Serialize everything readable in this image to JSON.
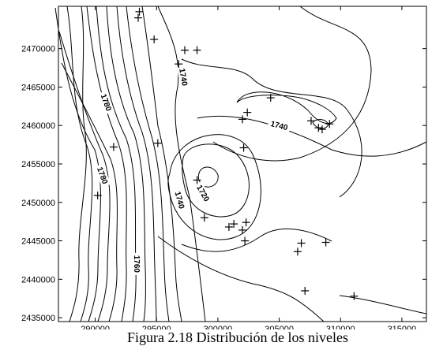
{
  "chart_data": {
    "type": "contour",
    "title": "",
    "xlabel": "",
    "ylabel": "",
    "xlim": [
      287000,
      317000
    ],
    "ylim": [
      2434500,
      2475500
    ],
    "x_ticks": [
      290000,
      295000,
      300000,
      305000,
      310000,
      315000
    ],
    "y_ticks": [
      2435000,
      2440000,
      2445000,
      2450000,
      2455000,
      2460000,
      2465000,
      2470000
    ],
    "x_tick_labels": [
      "290000",
      "295000",
      "300000",
      "305000",
      "310000",
      "315000"
    ],
    "y_tick_labels": [
      "2435000",
      "2440000",
      "2445000",
      "2450000",
      "2455000",
      "2460000",
      "2465000",
      "2470000"
    ],
    "contour_labels": [
      {
        "text": "1780",
        "x": 290900,
        "y": 2463000
      },
      {
        "text": "1780",
        "x": 290600,
        "y": 2453500
      },
      {
        "text": "1760",
        "x": 293400,
        "y": 2442000
      },
      {
        "text": "1740",
        "x": 296900,
        "y": 2450300
      },
      {
        "text": "1740",
        "x": 297200,
        "y": 2466300
      },
      {
        "text": "1740",
        "x": 305000,
        "y": 2460000
      },
      {
        "text": "1720",
        "x": 298800,
        "y": 2451200
      }
    ],
    "stations": [
      {
        "x": 293600,
        "y": 2474800
      },
      {
        "x": 293500,
        "y": 2474000
      },
      {
        "x": 294800,
        "y": 2471200
      },
      {
        "x": 297300,
        "y": 2469800
      },
      {
        "x": 298300,
        "y": 2469800
      },
      {
        "x": 296800,
        "y": 2468000
      },
      {
        "x": 304300,
        "y": 2463600
      },
      {
        "x": 302400,
        "y": 2461700
      },
      {
        "x": 302000,
        "y": 2460800
      },
      {
        "x": 307600,
        "y": 2460600
      },
      {
        "x": 309100,
        "y": 2460200
      },
      {
        "x": 308200,
        "y": 2459700
      },
      {
        "x": 308500,
        "y": 2459500
      },
      {
        "x": 291500,
        "y": 2457200
      },
      {
        "x": 295100,
        "y": 2457700
      },
      {
        "x": 302100,
        "y": 2457100
      },
      {
        "x": 298300,
        "y": 2452900
      },
      {
        "x": 290200,
        "y": 2450900
      },
      {
        "x": 298900,
        "y": 2448000
      },
      {
        "x": 302300,
        "y": 2447400
      },
      {
        "x": 301300,
        "y": 2447200
      },
      {
        "x": 300900,
        "y": 2446800
      },
      {
        "x": 302000,
        "y": 2446400
      },
      {
        "x": 302200,
        "y": 2445000
      },
      {
        "x": 306800,
        "y": 2444700
      },
      {
        "x": 308800,
        "y": 2444800
      },
      {
        "x": 306500,
        "y": 2443600
      },
      {
        "x": 307100,
        "y": 2438500
      },
      {
        "x": 311100,
        "y": 2437800
      }
    ]
  },
  "caption": "Figura 2.18 Distribución de los niveles"
}
